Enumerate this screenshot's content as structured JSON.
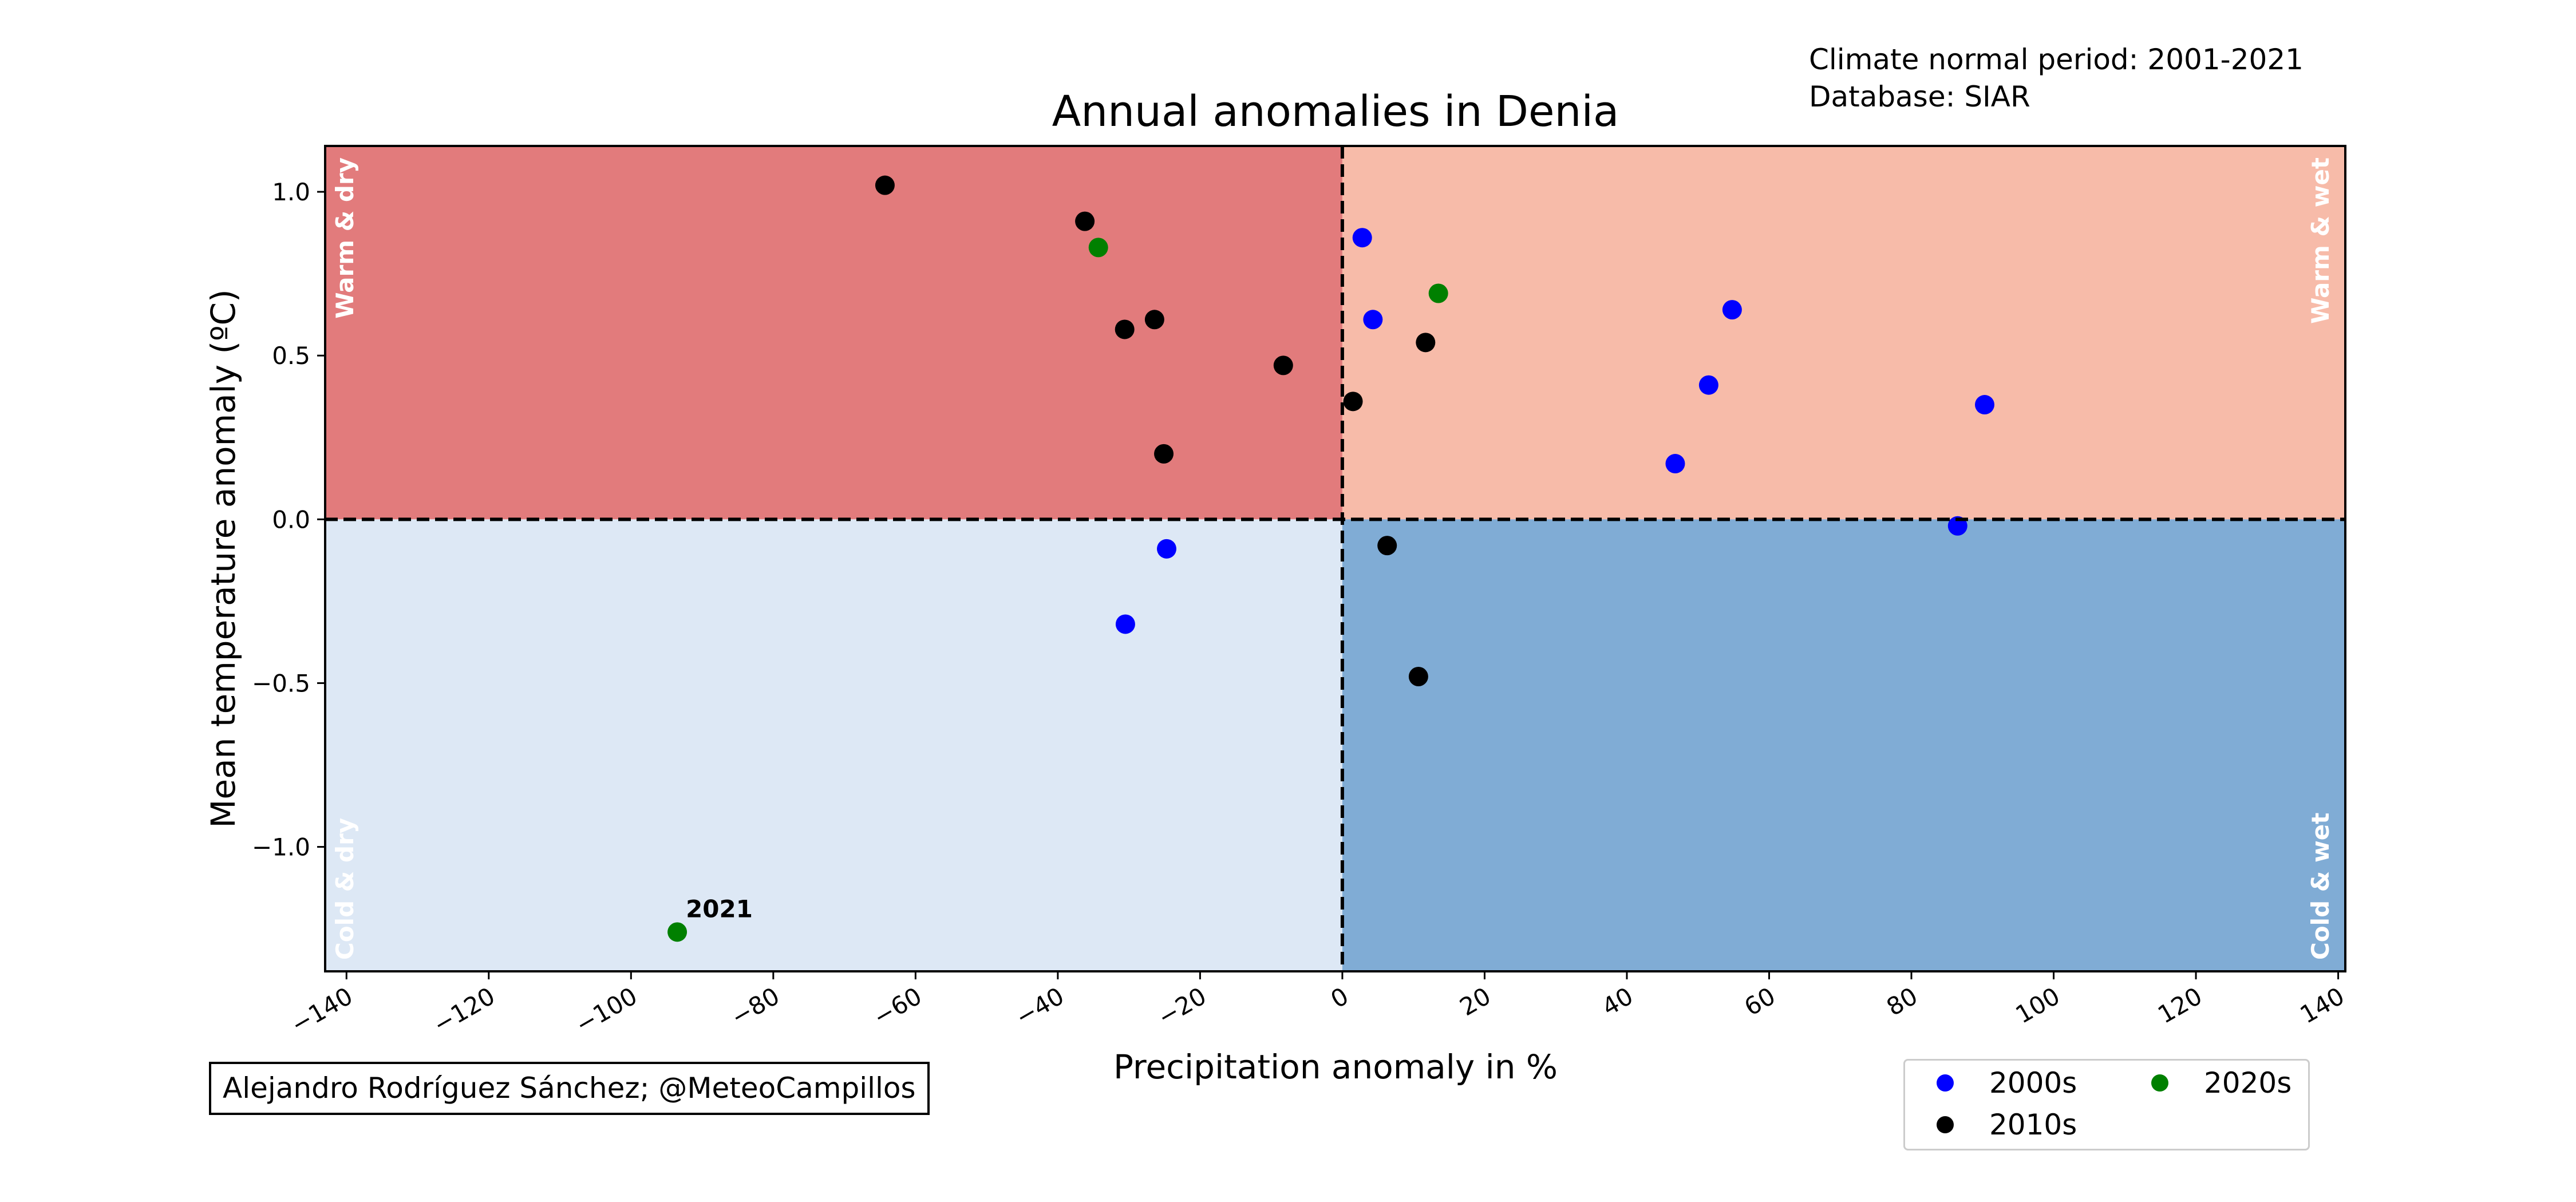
{
  "chart_data": {
    "type": "scatter",
    "title": "Annual anomalies in Denia",
    "xlabel": "Precipitation anomaly in %",
    "ylabel": "Mean temperature anomaly (ºC)",
    "xlim": [
      -143,
      141
    ],
    "ylim": [
      -1.38,
      1.14
    ],
    "x_ticks": [
      -140,
      -120,
      -100,
      -80,
      -60,
      -40,
      -20,
      0,
      20,
      40,
      60,
      80,
      100,
      120,
      140
    ],
    "y_ticks": [
      -1.0,
      -0.5,
      0.0,
      0.5,
      1.0
    ],
    "grid": false,
    "legend_position": "bottom-right",
    "quadrants": {
      "warm_dry": {
        "label": "Warm & dry",
        "color": "#e27b7c"
      },
      "warm_wet": {
        "label": "Warm & wet",
        "color": "#f7bba9"
      },
      "cold_dry": {
        "label": "Cold & dry",
        "color": "#dde8f5"
      },
      "cold_wet": {
        "label": "Cold & wet",
        "color": "#80acd5"
      }
    },
    "series": [
      {
        "name": "2000s",
        "color": "#0000ff",
        "points": [
          [
            2.8,
            0.86
          ],
          [
            4.3,
            0.61
          ],
          [
            54.8,
            0.64
          ],
          [
            51.5,
            0.41
          ],
          [
            46.8,
            0.17
          ],
          [
            90.3,
            0.35
          ],
          [
            86.5,
            -0.02
          ],
          [
            -24.7,
            -0.09
          ],
          [
            -30.5,
            -0.32
          ]
        ]
      },
      {
        "name": "2010s",
        "color": "#000000",
        "points": [
          [
            -64.3,
            1.02
          ],
          [
            -36.2,
            0.91
          ],
          [
            -30.6,
            0.58
          ],
          [
            -26.4,
            0.61
          ],
          [
            -8.3,
            0.47
          ],
          [
            1.5,
            0.36
          ],
          [
            11.7,
            0.54
          ],
          [
            -25.1,
            0.2
          ],
          [
            6.3,
            -0.08
          ],
          [
            10.7,
            -0.48
          ]
        ]
      },
      {
        "name": "2020s",
        "color": "#008000",
        "points": [
          [
            -34.3,
            0.83
          ],
          [
            13.5,
            0.69
          ],
          [
            -93.5,
            -1.26
          ]
        ]
      }
    ],
    "annotations": [
      {
        "text": "2021",
        "x": -93.5,
        "y": -1.26
      }
    ]
  },
  "meta": {
    "line1": "Climate normal period: 2001-2021",
    "line2": "Database: SIAR"
  },
  "credit": "Alejandro Rodríguez Sánchez; @MeteoCampillos"
}
